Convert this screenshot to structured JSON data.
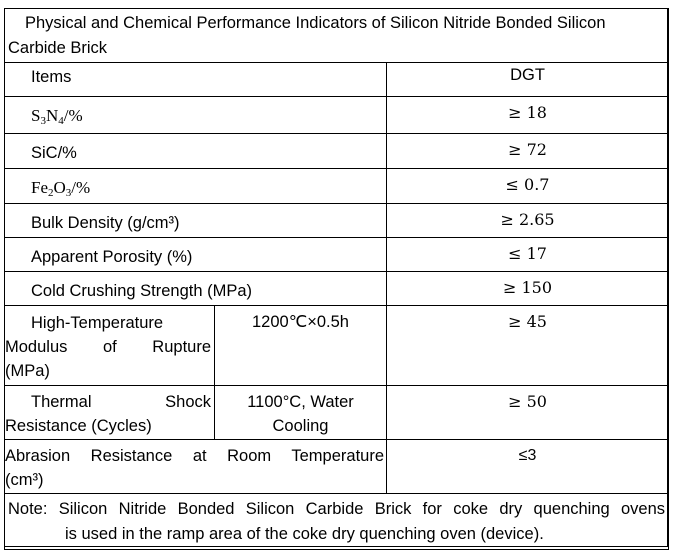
{
  "title": {
    "line1": "Physical and Chemical Performance Indicators of Silicon Nitride Bonded Silicon",
    "line2": "Carbide Brick"
  },
  "header": {
    "items": "Items",
    "grade": "DGT"
  },
  "rows": [
    {
      "label_main": "S",
      "sub1": "3",
      "mid": "N",
      "sub2": "4",
      "suffix": "/%",
      "value": "≥ 18"
    },
    {
      "label": "SiC/%",
      "value": "≥ 72"
    },
    {
      "label_main": "Fe",
      "sub1": "2",
      "mid": "O",
      "sub2": "3",
      "suffix": "/%",
      "value": "≤ 0.7"
    },
    {
      "label": "Bulk Density (g/cm³)",
      "value": "≥ 2.65"
    },
    {
      "label": "Apparent Porosity (%)",
      "value": "≤ 17"
    },
    {
      "label": "Cold Crushing Strength (MPa)",
      "value": "≥ 150"
    },
    {
      "label_line1": "High-Temperature",
      "label_w1": "Modulus",
      "label_w2": "of",
      "label_w3": "Rupture",
      "label_line3": "(MPa)",
      "condition": "1200℃×0.5h",
      "value": "≥ 45"
    },
    {
      "label_w1": "Thermal",
      "label_w2": "Shock",
      "label_line2": "Resistance (Cycles)",
      "condition_line1": "1100°C, Water",
      "condition_line2": "Cooling",
      "value": "≥ 50"
    },
    {
      "label_line1": "Abrasion Resistance at Room Temperature",
      "label_line2": "(cm³)",
      "value": "≤3"
    }
  ],
  "note": {
    "line1": "Note: Silicon Nitride Bonded Silicon Carbide Brick for coke dry quenching ovens",
    "line2": "is used in the ramp area of the coke dry quenching oven (device)."
  }
}
